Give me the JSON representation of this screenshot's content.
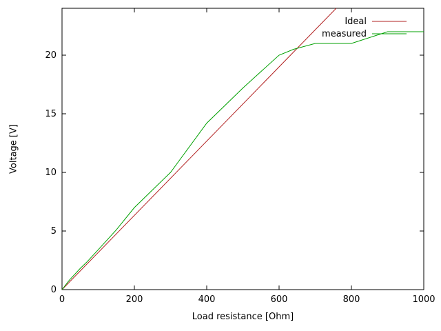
{
  "figure": {
    "background": "#ffffff",
    "axis_color": "#000000",
    "text_color": "#000000"
  },
  "chart_data": {
    "type": "line",
    "title": "",
    "xlabel": "Load resistance [Ohm]",
    "ylabel": "Voltage [V]",
    "xlim": [
      0,
      1000
    ],
    "ylim": [
      0,
      24
    ],
    "xticks": [
      0,
      200,
      400,
      600,
      800,
      1000
    ],
    "yticks": [
      0,
      5,
      10,
      15,
      20
    ],
    "grid": false,
    "legend_position": "top-right-inside",
    "series": [
      {
        "name": "Ideal",
        "color": "#b22222",
        "points": [
          [
            0,
            0
          ],
          [
            758,
            24
          ]
        ]
      },
      {
        "name": "measured",
        "color": "#00a000",
        "points": [
          [
            0,
            0
          ],
          [
            10,
            0.4
          ],
          [
            20,
            0.8
          ],
          [
            50,
            1.8
          ],
          [
            70,
            2.4
          ],
          [
            100,
            3.4
          ],
          [
            150,
            5.1
          ],
          [
            200,
            7
          ],
          [
            300,
            10
          ],
          [
            400,
            14.2
          ],
          [
            500,
            17.2
          ],
          [
            600,
            20
          ],
          [
            640,
            20.5
          ],
          [
            700,
            21
          ],
          [
            800,
            21
          ],
          [
            900,
            22
          ],
          [
            1000,
            22
          ]
        ]
      }
    ]
  }
}
